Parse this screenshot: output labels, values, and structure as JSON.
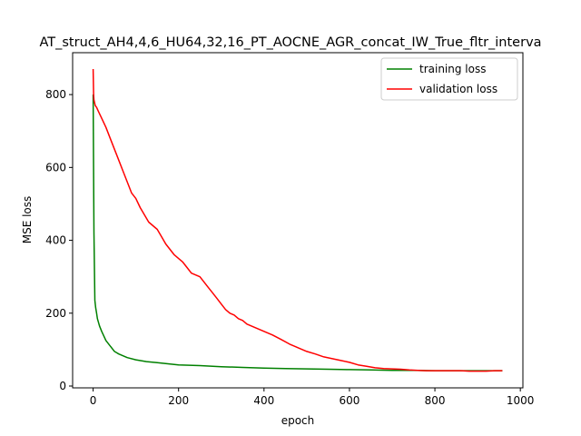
{
  "chart_data": {
    "type": "line",
    "title": "AT_struct_AH4,4,6_HU64,32,16_PT_AOCNE_AGR_concat_IW_True_fltr_interva",
    "xlabel": "epoch",
    "ylabel": "MSE loss",
    "xlim": [
      -48,
      1006
    ],
    "ylim": [
      -5,
      915
    ],
    "xticks": [
      0,
      200,
      400,
      600,
      800,
      1000
    ],
    "yticks": [
      0,
      200,
      400,
      600,
      800
    ],
    "grid": false,
    "legend_position": "top-right",
    "series": [
      {
        "name": "training loss",
        "color": "#008000",
        "x": [
          0,
          2,
          4,
          6,
          8,
          10,
          15,
          20,
          30,
          40,
          50,
          60,
          80,
          100,
          125,
          150,
          175,
          200,
          250,
          300,
          350,
          400,
          450,
          500,
          550,
          600,
          650,
          700,
          750,
          800,
          850,
          900,
          958
        ],
        "y": [
          800,
          420,
          235,
          215,
          200,
          185,
          165,
          150,
          125,
          110,
          95,
          88,
          78,
          72,
          67,
          64,
          61,
          58,
          56,
          53,
          51,
          49,
          48,
          47,
          46,
          45,
          44,
          43,
          43,
          42,
          42,
          42,
          42
        ]
      },
      {
        "name": "validation loss",
        "color": "#ff0000",
        "x": [
          0,
          1,
          2,
          3,
          5,
          8,
          12,
          20,
          30,
          40,
          50,
          60,
          70,
          80,
          90,
          100,
          110,
          120,
          130,
          140,
          150,
          160,
          170,
          180,
          190,
          200,
          210,
          220,
          230,
          240,
          250,
          260,
          270,
          280,
          290,
          300,
          310,
          320,
          330,
          340,
          350,
          360,
          380,
          400,
          420,
          440,
          460,
          480,
          500,
          520,
          540,
          560,
          580,
          600,
          620,
          640,
          660,
          680,
          700,
          720,
          740,
          760,
          780,
          800,
          820,
          840,
          860,
          880,
          900,
          920,
          940,
          958
        ],
        "y": [
          870,
          800,
          785,
          780,
          770,
          765,
          755,
          735,
          710,
          680,
          650,
          620,
          590,
          560,
          530,
          515,
          490,
          470,
          450,
          440,
          430,
          410,
          390,
          375,
          360,
          350,
          340,
          325,
          310,
          305,
          300,
          285,
          270,
          255,
          240,
          225,
          210,
          200,
          195,
          185,
          180,
          170,
          160,
          150,
          140,
          128,
          115,
          105,
          95,
          88,
          80,
          75,
          70,
          65,
          58,
          54,
          50,
          48,
          47,
          46,
          44,
          43,
          42,
          42,
          42,
          42,
          42,
          41,
          41,
          41,
          42,
          42
        ]
      }
    ]
  }
}
